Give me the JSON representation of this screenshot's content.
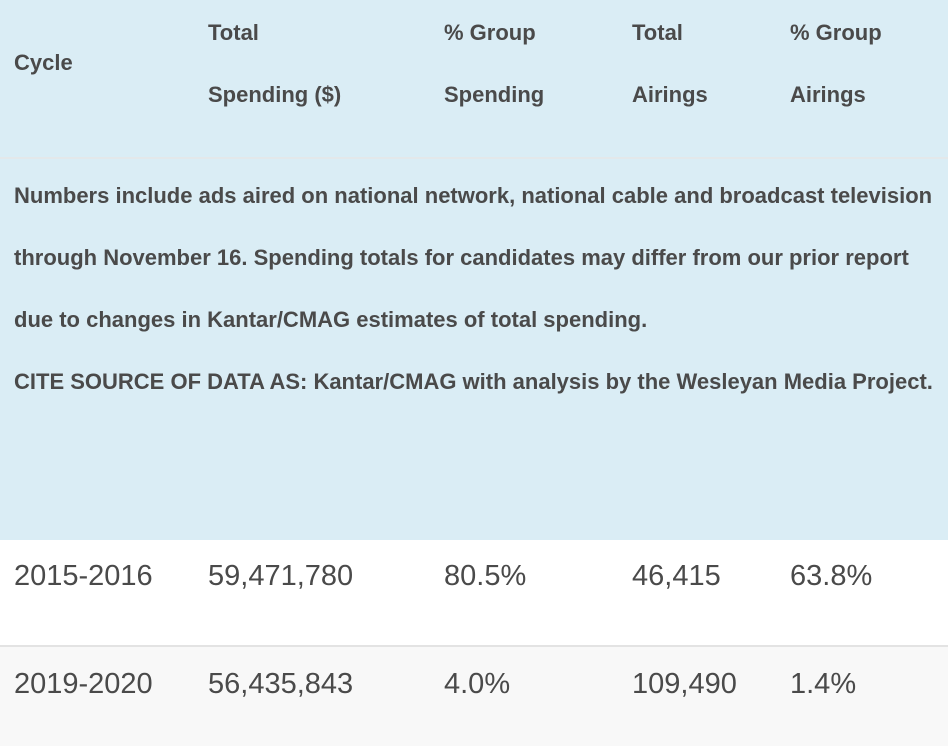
{
  "header": {
    "cycle": "Cycle",
    "total_spending": [
      "Total",
      "Spending ($)"
    ],
    "group_spending": [
      "% Group",
      "Spending"
    ],
    "total_airings": [
      "Total",
      "Airings"
    ],
    "group_airings": [
      "% Group",
      "Airings"
    ]
  },
  "note": {
    "line1": "Numbers include ads aired on national network, national cable and broadcast television",
    "line2": "through November 16. Spending totals for candidates may differ from our prior report",
    "line3": "due to changes in Kantar/CMAG estimates of total spending.",
    "line4": "CITE SOURCE OF DATA AS: Kantar/CMAG with analysis by the Wesleyan Media Project."
  },
  "rows": [
    {
      "cycle": "2015-2016",
      "total_spending": "59,471,780",
      "group_spending": "80.5%",
      "total_airings": "46,415",
      "group_airings": "63.8%"
    },
    {
      "cycle": "2019-2020",
      "total_spending": "56,435,843",
      "group_spending": "4.0%",
      "total_airings": "109,490",
      "group_airings": "1.4%"
    }
  ],
  "colors": {
    "header_bg": "#daedf5",
    "text": "#4a4a4a",
    "row_alt_bg": "#f8f8f8"
  }
}
